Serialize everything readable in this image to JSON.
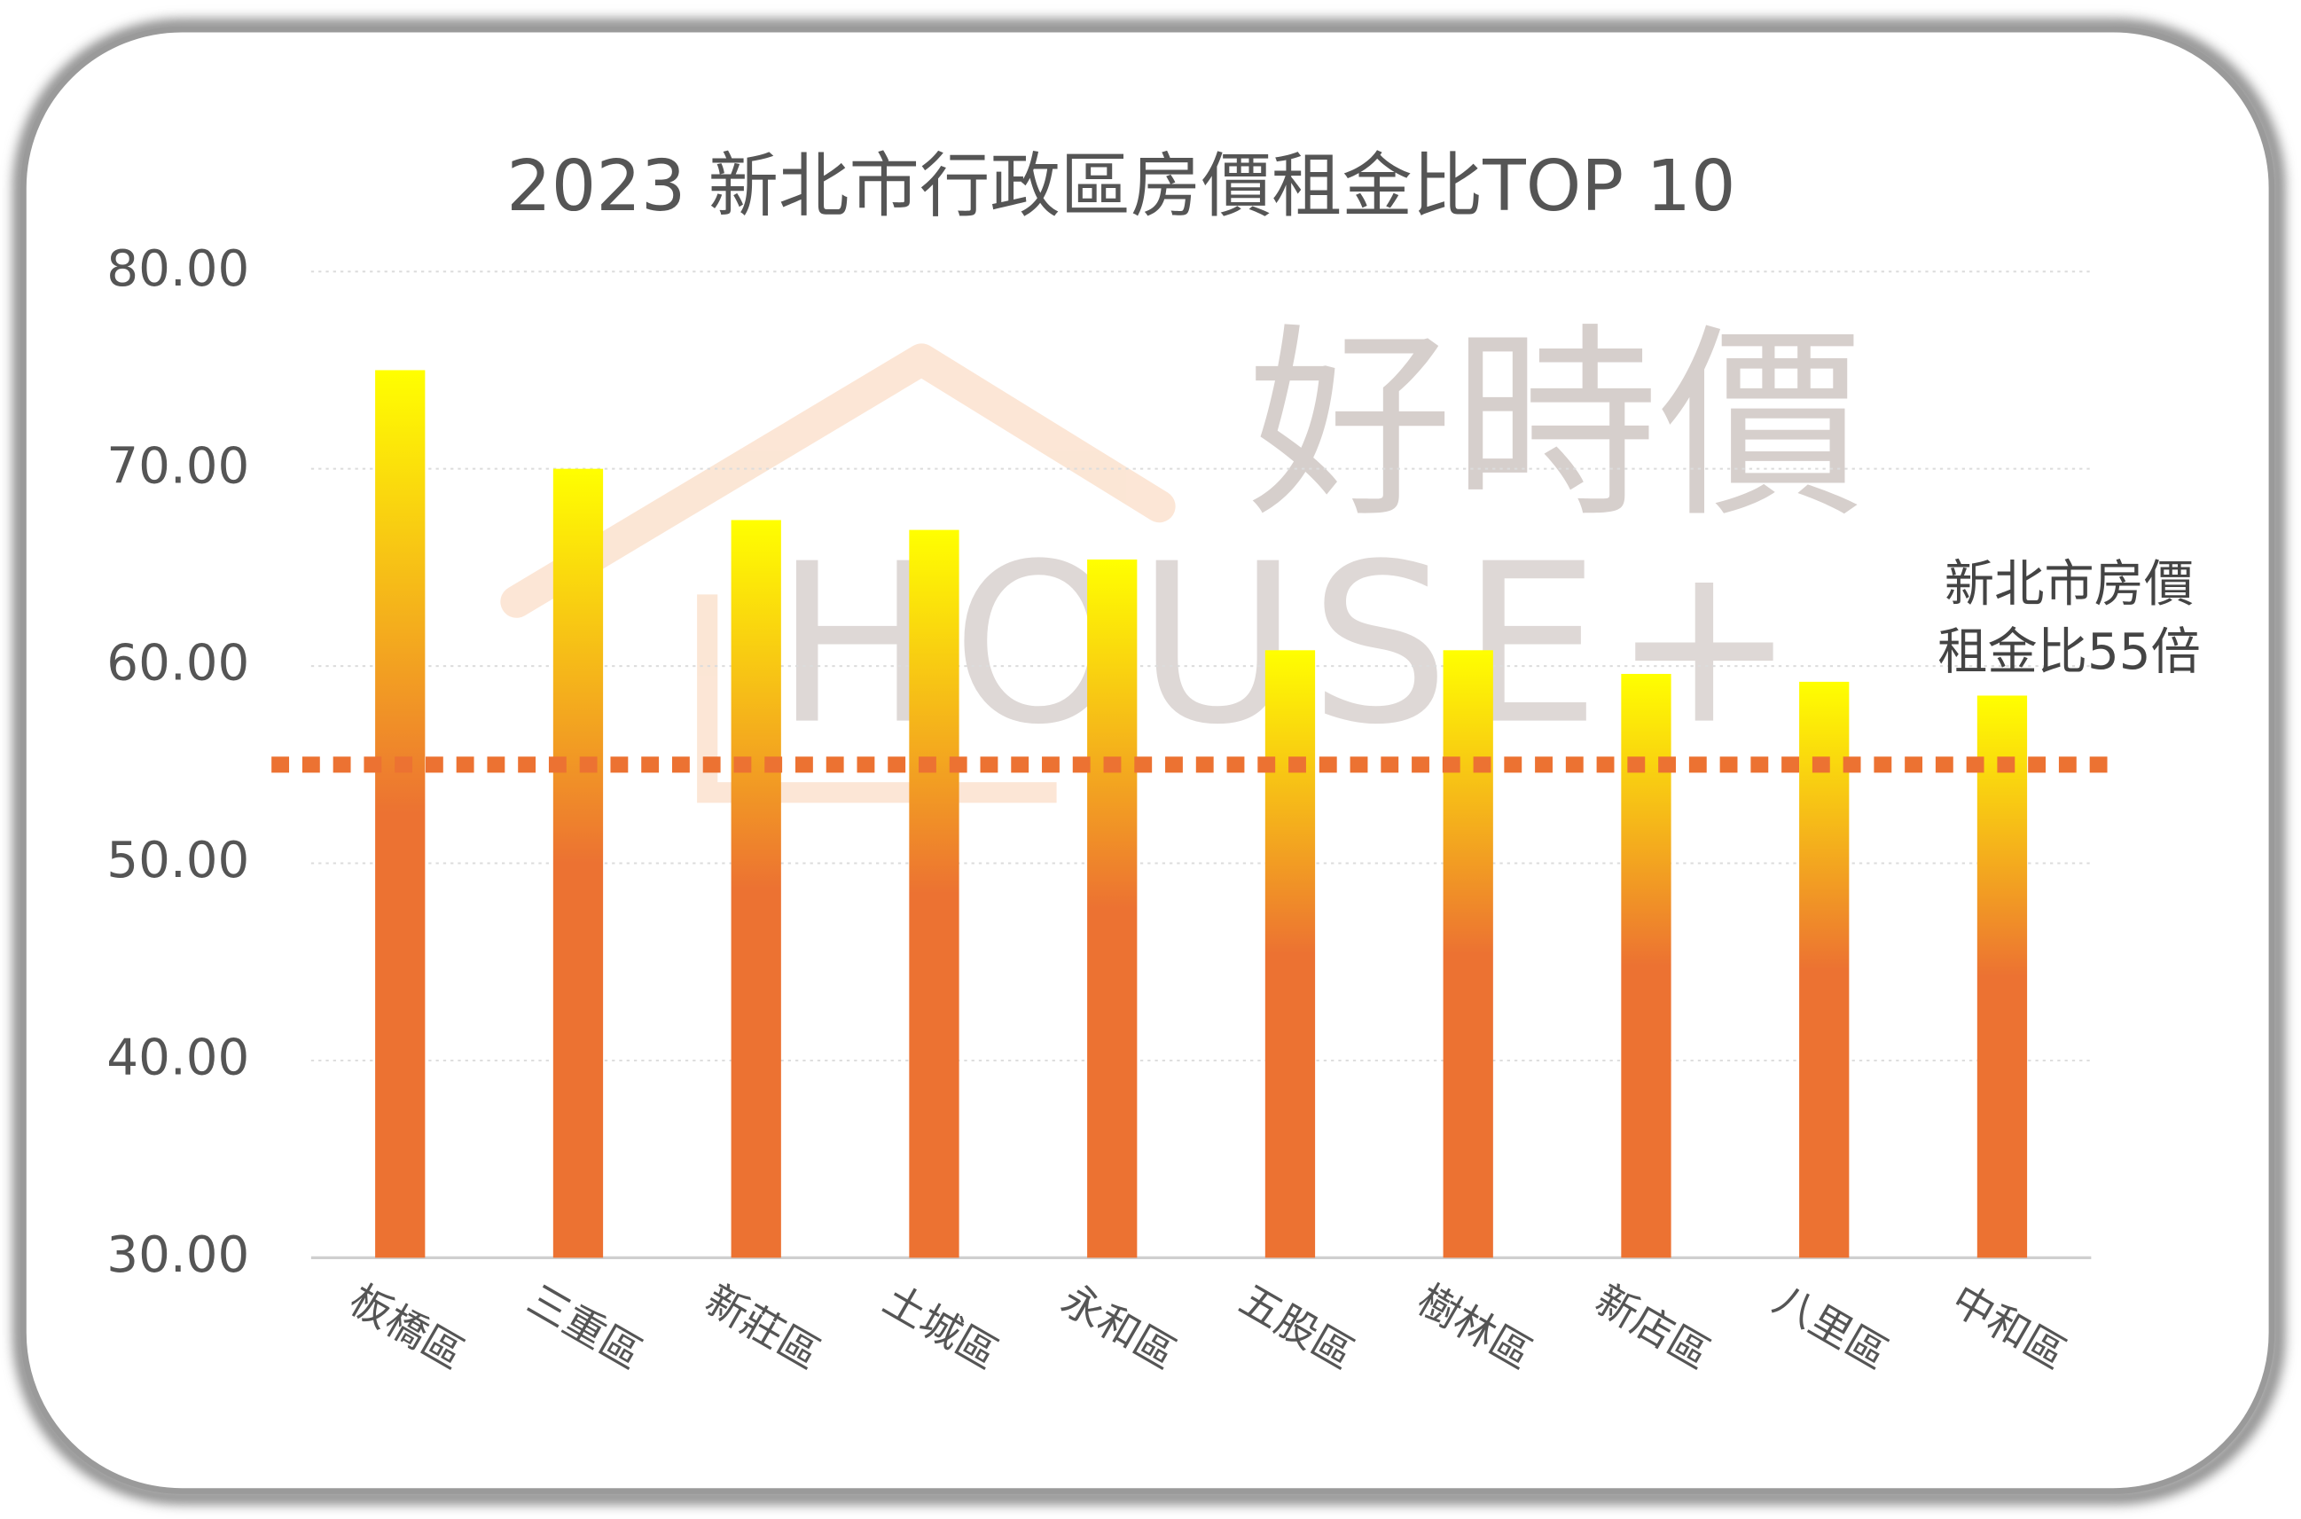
{
  "chart_data": {
    "type": "bar",
    "title": "2023 新北市行政區房價租金比TOP 10",
    "categories": [
      "板橋區",
      "三重區",
      "新莊區",
      "土城區",
      "永和區",
      "五股區",
      "樹林區",
      "新店區",
      "八里區",
      "中和區"
    ],
    "values": [
      75.0,
      70.0,
      67.4,
      66.9,
      65.4,
      60.8,
      60.8,
      59.6,
      59.2,
      58.5
    ],
    "colors": [
      "#ffff00",
      "#ec7232"
    ],
    "ylim": [
      30,
      80
    ],
    "yticks": [
      {
        "value": 30,
        "label": "30.00"
      },
      {
        "value": 40,
        "label": "40.00"
      },
      {
        "value": 50,
        "label": "50.00"
      },
      {
        "value": 60,
        "label": "60.00"
      },
      {
        "value": 70,
        "label": "70.00"
      },
      {
        "value": 80,
        "label": "80.00"
      }
    ],
    "grid": true,
    "reference_line": {
      "value": 55,
      "color": "#ec7232",
      "label": [
        "新北市房價",
        "租金比55倍"
      ]
    },
    "watermark": [
      "好時價",
      "HOUSE+"
    ]
  }
}
